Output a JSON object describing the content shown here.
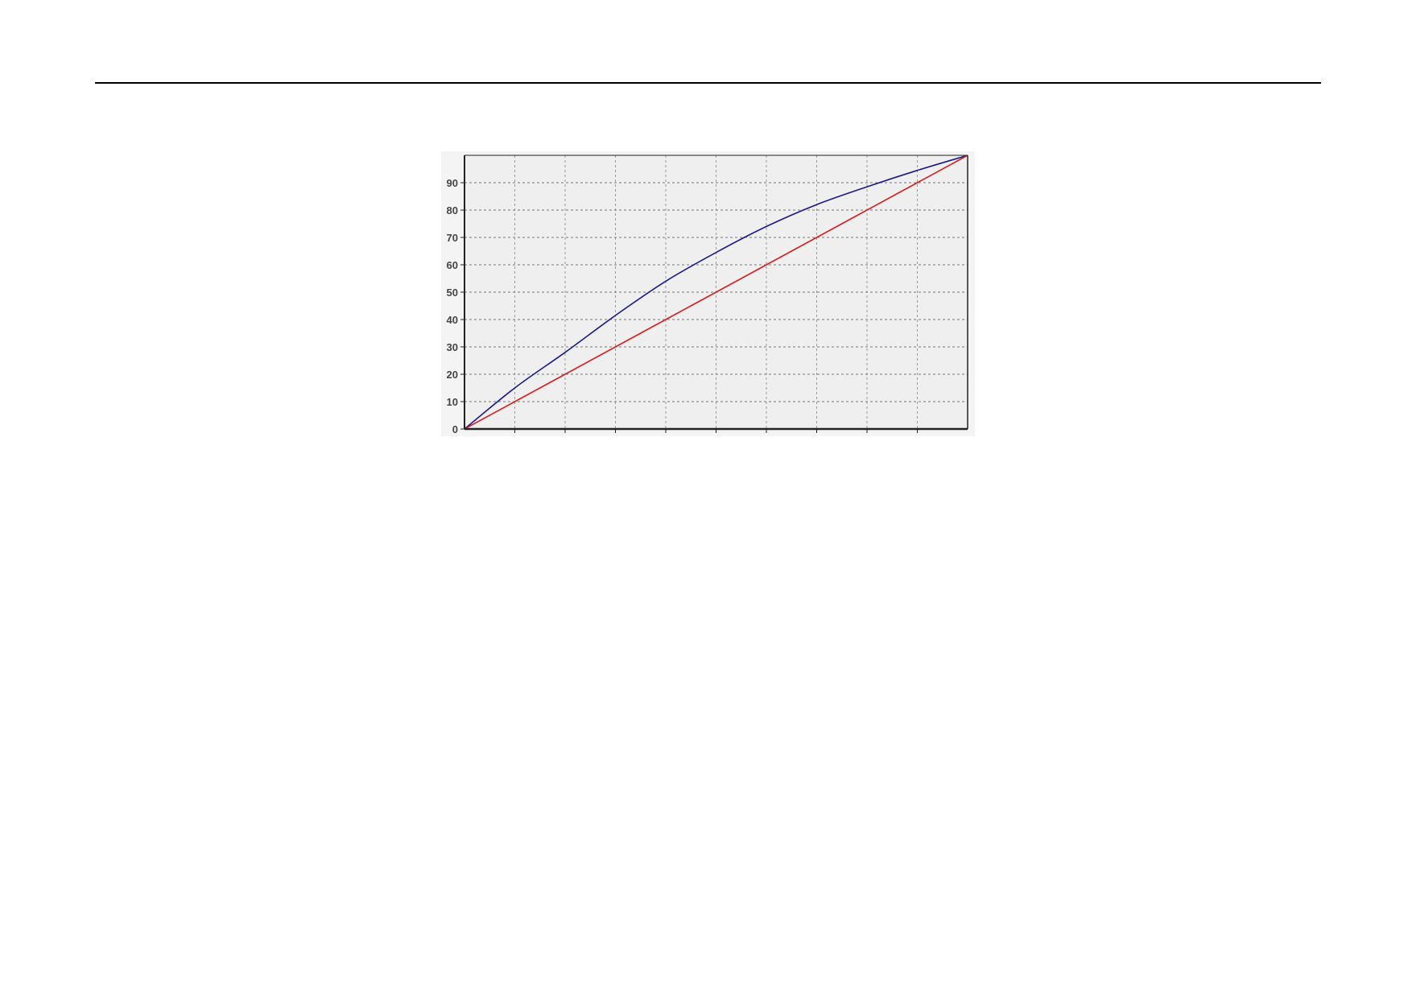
{
  "chart_data": {
    "type": "line",
    "title": "",
    "xlabel": "",
    "ylabel": "",
    "xlim": [
      0,
      100
    ],
    "ylim": [
      0,
      100
    ],
    "yticks": [
      0,
      10,
      20,
      30,
      40,
      50,
      60,
      70,
      80,
      90
    ],
    "xtick_count": 10,
    "x_tick_labels_shown": false,
    "grid": true,
    "grid_style": "dashed",
    "background": "#efefef",
    "x": [
      0,
      10,
      20,
      30,
      40,
      50,
      60,
      70,
      80,
      90,
      100
    ],
    "series": [
      {
        "color": "#1a1a8c",
        "values": [
          0,
          15,
          28,
          41.5,
          54,
          64.5,
          74,
          82,
          88.5,
          94.5,
          100
        ]
      },
      {
        "color": "#d62020",
        "values": [
          0,
          10,
          20,
          30,
          40,
          50,
          60,
          70,
          80,
          90,
          100
        ]
      }
    ]
  }
}
